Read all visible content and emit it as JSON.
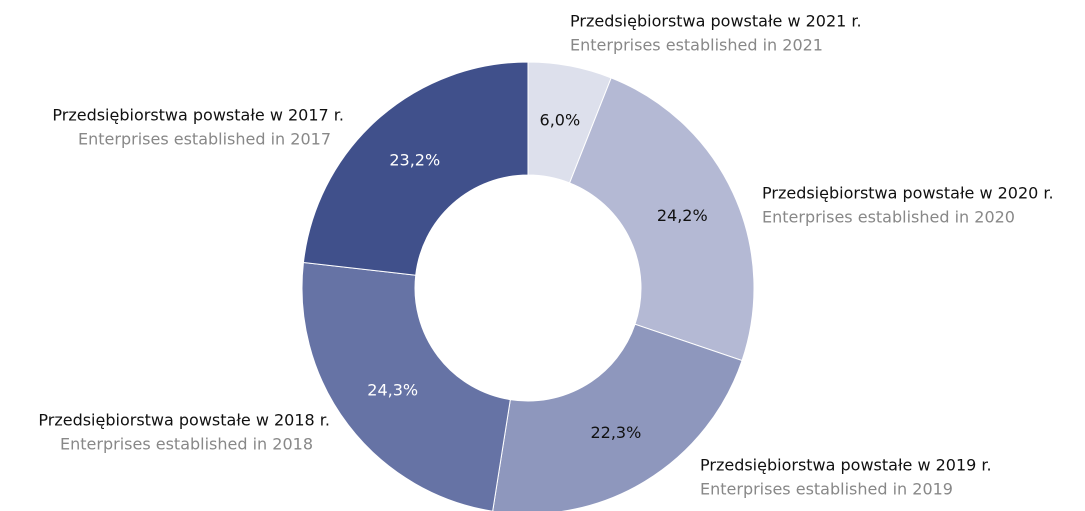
{
  "chart_data": {
    "type": "donut",
    "categories": [
      "Przedsiębiorstwa powstałe w 2021 r.",
      "Przedsiębiorstwa powstałe w 2020 r.",
      "Przedsiębiorstwa powstałe w 2019 r.",
      "Przedsiębiorstwa powstałe w 2018 r.",
      "Przedsiębiorstwa powstałe w 2017 r."
    ],
    "categories_en": [
      "Enterprises established in 2021",
      "Enterprises established in 2020",
      "Enterprises established in 2019",
      "Enterprises established in 2018",
      "Enterprises established in 2017"
    ],
    "values": [
      6.0,
      24.2,
      22.3,
      24.3,
      23.2
    ],
    "value_labels": [
      "6,0%",
      "24,2%",
      "22,3%",
      "24,3%",
      "23,2%"
    ],
    "colors": [
      "#dde0ec",
      "#b4b9d4",
      "#8e97bd",
      "#6673a5",
      "#40508b"
    ]
  }
}
